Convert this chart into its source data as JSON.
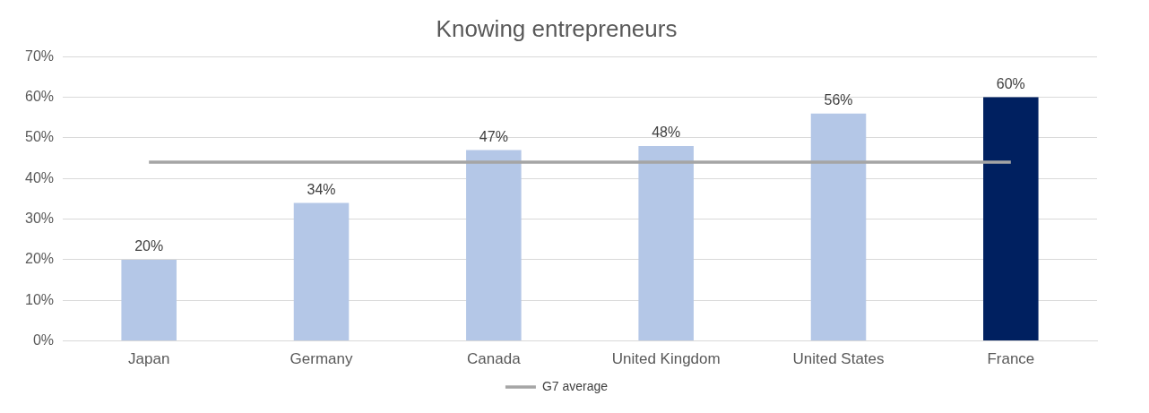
{
  "chart_data": {
    "type": "bar",
    "title": "Knowing entrepreneurs",
    "categories": [
      "Japan",
      "Germany",
      "Canada",
      "United Kingdom",
      "United States",
      "France"
    ],
    "series": [
      {
        "colors": [
          "#b4c7e7",
          "#b4c7e7",
          "#b4c7e7",
          "#b4c7e7",
          "#b4c7e7",
          "#002060"
        ],
        "values": [
          20,
          34,
          47,
          48,
          56,
          60
        ],
        "value_labels": [
          "20%",
          "34%",
          "47%",
          "48%",
          "56%",
          "60%"
        ]
      },
      {
        "type": "line",
        "name": "G7 average",
        "color": "#a5a5a5",
        "values": [
          44,
          44,
          44,
          44,
          44,
          44
        ]
      }
    ],
    "ylim": [
      0,
      70
    ],
    "yticks": [
      {
        "value": 0,
        "label": "0%"
      },
      {
        "value": 10,
        "label": "10%"
      },
      {
        "value": 20,
        "label": "20%"
      },
      {
        "value": 30,
        "label": "30%"
      },
      {
        "value": 40,
        "label": "40%"
      },
      {
        "value": 50,
        "label": "50%"
      },
      {
        "value": 60,
        "label": "60%"
      },
      {
        "value": 70,
        "label": "70%"
      }
    ],
    "grid": "y",
    "legend": "bottom",
    "marker": "none"
  }
}
